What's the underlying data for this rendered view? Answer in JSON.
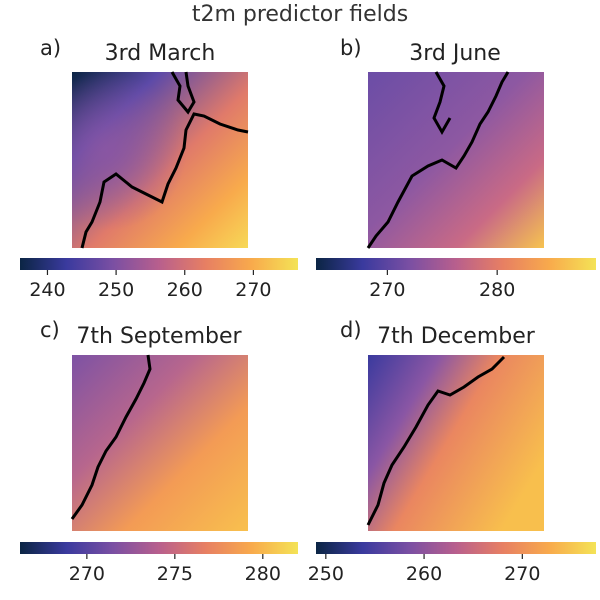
{
  "figure": {
    "title": "t2m predictor fields"
  },
  "colormap": {
    "name": "thermal",
    "stops": [
      "#0b2544",
      "#3a3a9e",
      "#7a4fa3",
      "#b85f8d",
      "#e77f63",
      "#f8aa4c",
      "#f4e356"
    ]
  },
  "coastline_color": "#000000",
  "chart_data": [
    {
      "type": "heatmap",
      "panel_letter": "a)",
      "title": "3rd March",
      "colorbar": {
        "min": 236,
        "max": 276.5,
        "ticks": [
          240,
          250,
          260,
          270
        ],
        "tick_labels": [
          "240",
          "250",
          "260",
          "270"
        ]
      }
    },
    {
      "type": "heatmap",
      "panel_letter": "b)",
      "title": "3rd June",
      "colorbar": {
        "min": 263.5,
        "max": 289,
        "ticks": [
          270,
          280
        ],
        "tick_labels": [
          "270",
          "280"
        ]
      }
    },
    {
      "type": "heatmap",
      "panel_letter": "c)",
      "title": "7th September",
      "colorbar": {
        "min": 266.2,
        "max": 282,
        "ticks": [
          270,
          275,
          280
        ],
        "tick_labels": [
          "270",
          "275",
          "280"
        ]
      }
    },
    {
      "type": "heatmap",
      "panel_letter": "d)",
      "title": "7th December",
      "colorbar": {
        "min": 249,
        "max": 277.5,
        "ticks": [
          250,
          260,
          270
        ],
        "tick_labels": [
          "250",
          "260",
          "270"
        ]
      }
    }
  ]
}
